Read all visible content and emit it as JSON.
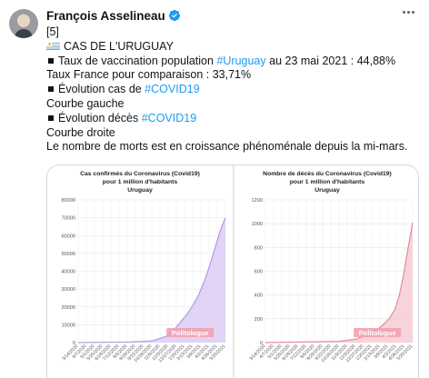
{
  "author": {
    "name": "François Asselineau"
  },
  "tweet": {
    "lines": [
      {
        "segments": [
          {
            "t": "[5]"
          }
        ]
      },
      {
        "flag": true,
        "segments": [
          {
            "t": "CAS DE L'URUGUAY"
          }
        ]
      },
      {
        "bullet": true,
        "segments": [
          {
            "t": "Taux de vaccination population "
          },
          {
            "t": "#Uruguay",
            "tag": true
          },
          {
            "t": " au 23 mai 2021 : 44,88%"
          }
        ]
      },
      {
        "segments": [
          {
            "t": "Taux France pour comparaison : 33,71%"
          }
        ]
      },
      {
        "bullet": true,
        "segments": [
          {
            "t": "Évolution cas de "
          },
          {
            "t": "#COVID19",
            "tag": true
          }
        ]
      },
      {
        "segments": [
          {
            "t": "Courbe gauche"
          }
        ]
      },
      {
        "bullet": true,
        "segments": [
          {
            "t": "Évolution décès "
          },
          {
            "t": "#COVID19",
            "tag": true
          }
        ]
      },
      {
        "segments": [
          {
            "t": "Courbe droite"
          }
        ]
      },
      {
        "segments": [
          {
            "t": "Le nombre de morts est en croissance phénoménale depuis la mi-mars."
          }
        ]
      }
    ]
  },
  "colors": {
    "hashtag": "#1d9bf0",
    "cases_line": "#b29ae6",
    "cases_fill": "#dccdf5",
    "deaths_line": "#e8899b",
    "deaths_fill": "#f6cdd5",
    "watermark_bg": "#f2a1b0"
  },
  "watermark": "Politologue",
  "chart_data": [
    {
      "type": "area",
      "title": [
        "Cas confirmés du Coronavirus (Covid19)",
        "pour 1 million d'habitants",
        "Uruguay"
      ],
      "xlabel": "",
      "ylabel": "",
      "ylim": [
        0,
        80000
      ],
      "yticks": [
        0,
        10000,
        20000,
        30000,
        40000,
        50000,
        60000,
        70000,
        80000
      ],
      "xticks": [
        "3/14/2020",
        "4/7/2020",
        "5/1/2020",
        "5/25/2020",
        "6/18/2020",
        "7/12/2020",
        "8/5/2020",
        "8/29/2020",
        "9/22/2020",
        "10/16/2020",
        "11/9/2020",
        "12/3/2020",
        "12/27/2020",
        "1/20/2021",
        "2/13/2021",
        "3/9/2021",
        "4/2/2021",
        "4/26/2021",
        "5/20/2021"
      ],
      "x": [
        0,
        0.35,
        0.5,
        0.6,
        0.66,
        0.7,
        0.74,
        0.78,
        0.82,
        0.86,
        0.9,
        0.94,
        0.97,
        1.0
      ],
      "values": [
        0,
        300,
        900,
        3500,
        8000,
        12000,
        16000,
        21000,
        27000,
        35000,
        45000,
        56000,
        64000,
        70000
      ],
      "grid": true
    },
    {
      "type": "area",
      "title": [
        "Nombre de décès du Coronavirus (Covid19)",
        "pour 1 million d'habitants",
        "Uruguay"
      ],
      "xlabel": "",
      "ylabel": "",
      "ylim": [
        0,
        1200
      ],
      "yticks": [
        0,
        200,
        400,
        600,
        800,
        1000,
        1200
      ],
      "xticks": [
        "3/14/2020",
        "4/7/2020",
        "5/1/2020",
        "5/25/2020",
        "6/18/2020",
        "7/12/2020",
        "8/5/2020",
        "8/29/2020",
        "9/22/2020",
        "10/16/2020",
        "11/9/2020",
        "12/3/2020",
        "12/27/2020",
        "1/20/2021",
        "2/13/2021",
        "3/9/2021",
        "4/2/2021",
        "4/26/2021",
        "5/20/2021"
      ],
      "x": [
        0,
        0.5,
        0.62,
        0.7,
        0.76,
        0.8,
        0.84,
        0.88,
        0.91,
        0.94,
        0.97,
        1.0
      ],
      "values": [
        0,
        10,
        30,
        70,
        110,
        150,
        200,
        280,
        400,
        580,
        800,
        1010
      ],
      "grid": true
    }
  ]
}
